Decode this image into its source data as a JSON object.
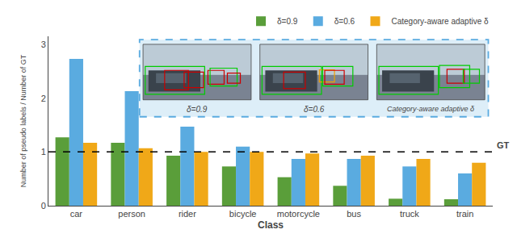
{
  "chart_data": {
    "type": "bar",
    "categories": [
      "car",
      "person",
      "rider",
      "bicycle",
      "motorcycle",
      "bus",
      "truck",
      "train"
    ],
    "series": [
      {
        "name": "δ=0.9",
        "color": "#5a9e3a",
        "values": [
          1.27,
          1.17,
          0.93,
          0.73,
          0.53,
          0.37,
          0.13,
          0.12
        ]
      },
      {
        "name": "δ=0.6",
        "color": "#5aabe0",
        "values": [
          2.73,
          2.13,
          1.47,
          1.1,
          0.87,
          0.87,
          0.73,
          0.6
        ]
      },
      {
        "name": "Category-aware adaptive δ",
        "color": "#f0a818",
        "values": [
          1.17,
          1.07,
          1.0,
          1.0,
          0.97,
          0.93,
          0.87,
          0.8
        ]
      }
    ],
    "reference_lines": [
      {
        "value": 1.0,
        "label": "GT",
        "color": "#000000",
        "line_style": "dashed"
      }
    ],
    "annotations": [
      "δ=0.9",
      "δ=0.6",
      "Category-aware adaptive δ"
    ],
    "xlabel": "Class",
    "ylabel": "Number of pseudo labels / Number of GT",
    "ylim": [
      0,
      3.15
    ],
    "yticks": [
      0,
      1,
      2,
      3
    ],
    "grid": false,
    "legend": "top"
  }
}
